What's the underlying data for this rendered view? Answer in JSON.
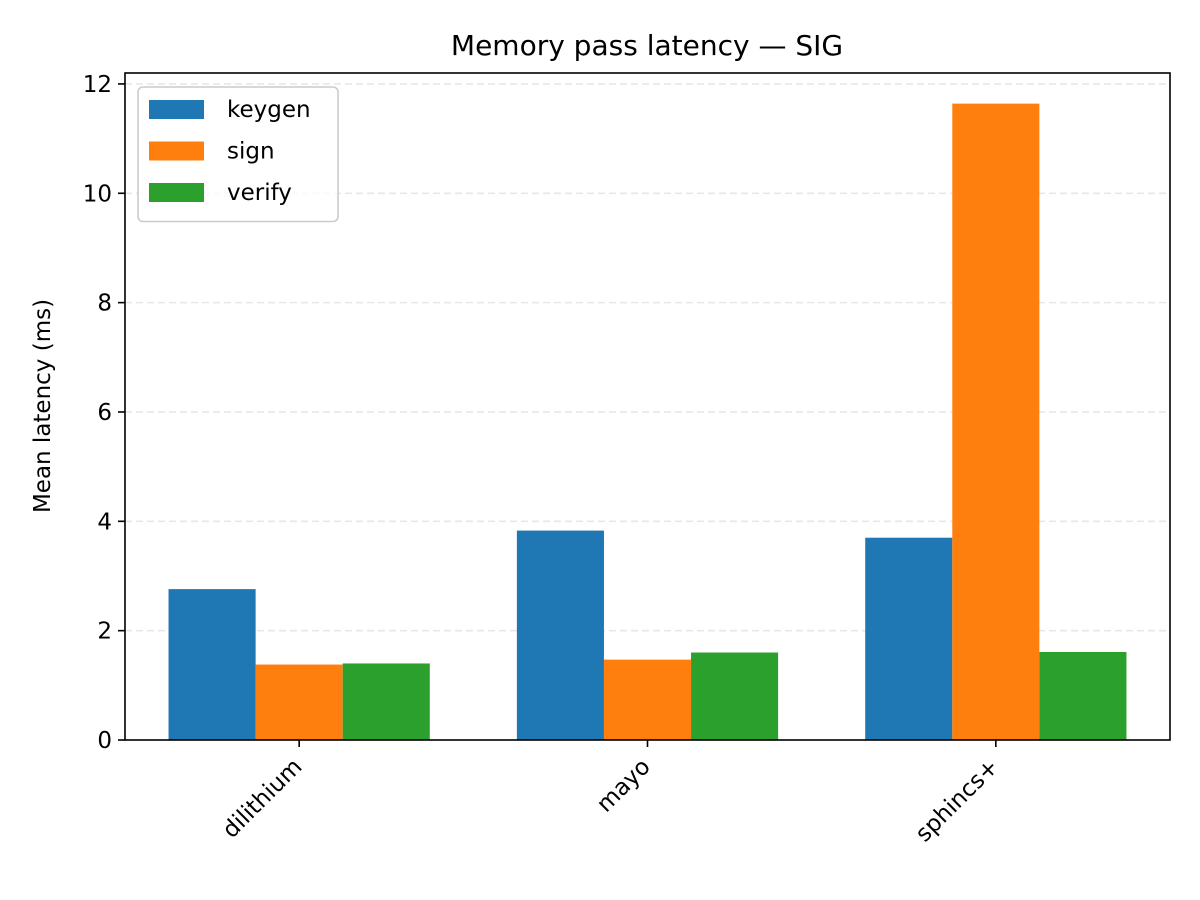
{
  "chart_data": {
    "type": "bar",
    "title": "Memory pass latency — SIG",
    "xlabel": "",
    "ylabel": "Mean latency (ms)",
    "categories": [
      "dilithium",
      "mayo",
      "sphincs+"
    ],
    "series": [
      {
        "name": "keygen",
        "color": "#1f77b4",
        "values": [
          2.76,
          3.83,
          3.7
        ]
      },
      {
        "name": "sign",
        "color": "#ff7f0e",
        "values": [
          1.38,
          1.47,
          11.64
        ]
      },
      {
        "name": "verify",
        "color": "#2ca02c",
        "values": [
          1.4,
          1.6,
          1.61
        ]
      }
    ],
    "ylim": [
      0,
      12.2
    ],
    "yticks": [
      0,
      2,
      4,
      6,
      8,
      10,
      12
    ],
    "ytick_labels": [
      "0",
      "2",
      "4",
      "6",
      "8",
      "10",
      "12"
    ],
    "grid": {
      "y": true,
      "style": "dashed"
    },
    "legend": {
      "placement": "upper-left"
    }
  }
}
